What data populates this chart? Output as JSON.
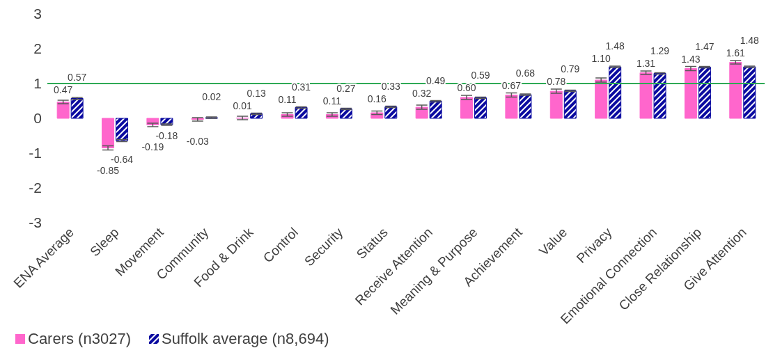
{
  "chart_data": {
    "type": "bar",
    "categories": [
      "ENA Average",
      "Sleep",
      "Movement",
      "Community",
      "Food & Drink",
      "Control",
      "Security",
      "Status",
      "Receive Attention",
      "Meaning & Purpose",
      "Achievement",
      "Value",
      "Privacy",
      "Emotional Connection",
      "Close Relationship",
      "Give Attention"
    ],
    "series": [
      {
        "name": "Carers (n3027)",
        "color": "#ff66cc",
        "values": [
          0.47,
          -0.85,
          -0.19,
          -0.03,
          0.01,
          0.11,
          0.11,
          0.16,
          0.32,
          0.6,
          0.67,
          0.78,
          1.1,
          1.31,
          1.43,
          1.61
        ],
        "value_labels": [
          "0.47",
          "-0.85",
          "-0.19",
          "-0.03",
          "0.01",
          "0.11",
          "0.11",
          "0.16",
          "0.32",
          "0.60",
          "0.67",
          "0.78",
          "1.10",
          "1.31",
          "1.43",
          "1.61"
        ],
        "errors": [
          0.05,
          0.06,
          0.05,
          0.05,
          0.05,
          0.05,
          0.05,
          0.05,
          0.06,
          0.06,
          0.06,
          0.06,
          0.06,
          0.05,
          0.06,
          0.05
        ]
      },
      {
        "name": "Suffolk average (n8,694)",
        "color": "#0a0aa0",
        "values": [
          0.57,
          -0.64,
          -0.18,
          0.02,
          0.13,
          0.31,
          0.27,
          0.33,
          0.49,
          0.59,
          0.68,
          0.79,
          1.48,
          1.29,
          1.47,
          1.48
        ],
        "value_labels": [
          "0.57",
          "-0.64",
          "-0.18",
          "0.02",
          "0.13",
          "0.31",
          "0.27",
          "0.33",
          "0.49",
          "0.59",
          "0.68",
          "0.79",
          "1.48",
          "1.29",
          "1.47",
          "1.48"
        ],
        "errors": [
          0.03,
          0.03,
          0.02,
          0.02,
          0.02,
          0.02,
          0.02,
          0.02,
          0.02,
          0.02,
          0.02,
          0.02,
          0.02,
          0.02,
          0.02,
          0.02
        ]
      }
    ],
    "ylim": [
      -3,
      3
    ],
    "yticks": [
      -3,
      -2,
      -1,
      0,
      1,
      2,
      3
    ],
    "grid": false,
    "legend": "bottom left",
    "ref_lines": [
      {
        "axis": "y",
        "value": 1,
        "color": "#2eaa55"
      }
    ]
  }
}
